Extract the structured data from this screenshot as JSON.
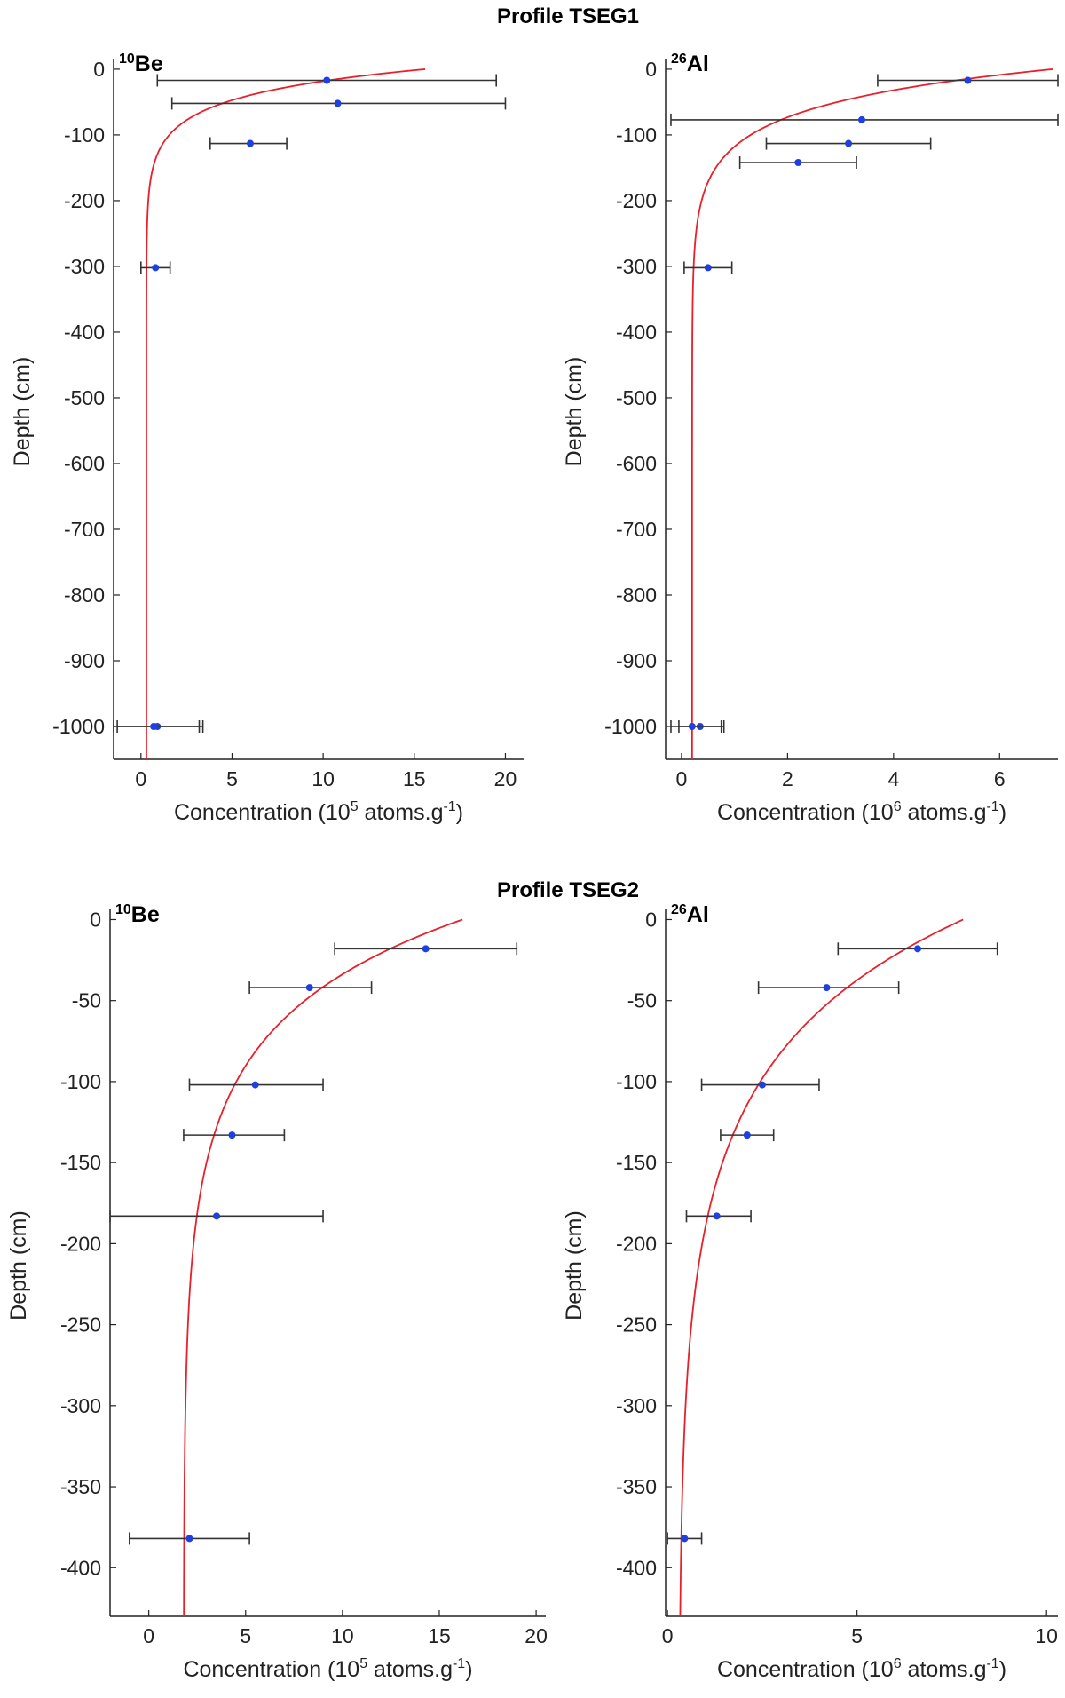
{
  "sections": [
    {
      "title": "Profile TSEG1"
    },
    {
      "title": "Profile TSEG2"
    }
  ],
  "chart_data": [
    {
      "type": "scatter",
      "panel": "TSEG1-Be",
      "isotope_mass": "10",
      "isotope_symbol": "Be",
      "xlabel_main": "Concentration (10",
      "xlabel_exp": "5",
      "xlabel_unit": " atoms.g",
      "xlabel_unit_exp": "-1",
      "xlabel_close": ")",
      "ylabel": "Depth (cm)",
      "xlim": [
        -1.5,
        21
      ],
      "ylim": [
        -1050,
        8
      ],
      "xticks": [
        0,
        5,
        10,
        15,
        20
      ],
      "yticks": [
        0,
        -100,
        -200,
        -300,
        -400,
        -500,
        -600,
        -700,
        -800,
        -900,
        -1000
      ],
      "points": [
        {
          "x": 10.2,
          "y": -17,
          "xerr_low": 0.9,
          "xerr_high": 19.5
        },
        {
          "x": 10.8,
          "y": -52,
          "xerr_low": 1.7,
          "xerr_high": 20.0
        },
        {
          "x": 6.0,
          "y": -113,
          "xerr_low": 3.8,
          "xerr_high": 8.0
        },
        {
          "x": 0.8,
          "y": -302,
          "xerr_low": 0.0,
          "xerr_high": 1.6
        },
        {
          "x": 0.9,
          "y": -1000,
          "xerr_low": -1.3,
          "xerr_high": 3.2
        },
        {
          "x": 0.7,
          "y": -1000,
          "xerr_low": -1.5,
          "xerr_high": 3.4
        }
      ],
      "fit": {
        "color": "#e8202a",
        "asymptote": 0.3,
        "surface_value": 15.6,
        "depth_scale_cm": 40
      }
    },
    {
      "type": "scatter",
      "panel": "TSEG1-Al",
      "isotope_mass": "26",
      "isotope_symbol": "Al",
      "xlabel_main": "Concentration (10",
      "xlabel_exp": "6",
      "xlabel_unit": " atoms.g",
      "xlabel_unit_exp": "-1",
      "xlabel_close": ")",
      "ylabel": "Depth (cm)",
      "xlim": [
        -0.3,
        7.1
      ],
      "ylim": [
        -1050,
        8
      ],
      "xticks": [
        0,
        2,
        4,
        6
      ],
      "yticks": [
        0,
        -100,
        -200,
        -300,
        -400,
        -500,
        -600,
        -700,
        -800,
        -900,
        -1000
      ],
      "points": [
        {
          "x": 5.4,
          "y": -17,
          "xerr_low": 3.7,
          "xerr_high": 7.1
        },
        {
          "x": 3.4,
          "y": -77,
          "xerr_low": -0.2,
          "xerr_high": 7.1
        },
        {
          "x": 3.15,
          "y": -113,
          "xerr_low": 1.6,
          "xerr_high": 4.7
        },
        {
          "x": 2.2,
          "y": -142,
          "xerr_low": 1.1,
          "xerr_high": 3.3
        },
        {
          "x": 0.5,
          "y": -302,
          "xerr_low": 0.05,
          "xerr_high": 0.95
        },
        {
          "x": 0.35,
          "y": -1000,
          "xerr_low": -0.05,
          "xerr_high": 0.8
        },
        {
          "x": 0.2,
          "y": -1000,
          "xerr_low": -0.2,
          "xerr_high": 0.75
        }
      ],
      "fit": {
        "color": "#e8202a",
        "asymptote": 0.2,
        "surface_value": 7.0,
        "depth_scale_cm": 55
      }
    },
    {
      "type": "scatter",
      "panel": "TSEG2-Be",
      "isotope_mass": "10",
      "isotope_symbol": "Be",
      "xlabel_main": "Concentration (10",
      "xlabel_exp": "5",
      "xlabel_unit": " atoms.g",
      "xlabel_unit_exp": "-1",
      "xlabel_close": ")",
      "ylabel": "Depth (cm)",
      "xlim": [
        -2,
        20.5
      ],
      "ylim": [
        -430,
        3
      ],
      "xticks": [
        0,
        5,
        10,
        15,
        20
      ],
      "yticks": [
        0,
        -50,
        -100,
        -150,
        -200,
        -250,
        -300,
        -350,
        -400
      ],
      "points": [
        {
          "x": 14.3,
          "y": -18,
          "xerr_low": 9.6,
          "xerr_high": 19.0
        },
        {
          "x": 8.3,
          "y": -42,
          "xerr_low": 5.2,
          "xerr_high": 11.5
        },
        {
          "x": 5.5,
          "y": -102,
          "xerr_low": 2.1,
          "xerr_high": 9.0
        },
        {
          "x": 4.3,
          "y": -133,
          "xerr_low": 1.8,
          "xerr_high": 7.0
        },
        {
          "x": 3.5,
          "y": -183,
          "xerr_low": -2.0,
          "xerr_high": 9.0
        },
        {
          "x": 2.1,
          "y": -382,
          "xerr_low": -1.0,
          "xerr_high": 5.2
        }
      ],
      "fit": {
        "color": "#e8202a",
        "asymptote": 1.8,
        "surface_value": 16.2,
        "depth_scale_cm": 60
      }
    },
    {
      "type": "scatter",
      "panel": "TSEG2-Al",
      "isotope_mass": "26",
      "isotope_symbol": "Al",
      "xlabel_main": "Concentration (10",
      "xlabel_exp": "6",
      "xlabel_unit": " atoms.g",
      "xlabel_unit_exp": "-1",
      "xlabel_close": ")",
      "ylabel": "Depth (cm)",
      "xlim": [
        -0.05,
        10.3
      ],
      "ylim": [
        -430,
        3
      ],
      "xticks": [
        0,
        5,
        10
      ],
      "yticks": [
        0,
        -50,
        -100,
        -150,
        -200,
        -250,
        -300,
        -350,
        -400
      ],
      "points": [
        {
          "x": 6.6,
          "y": -18,
          "xerr_low": 4.5,
          "xerr_high": 8.7
        },
        {
          "x": 4.2,
          "y": -42,
          "xerr_low": 2.4,
          "xerr_high": 6.1
        },
        {
          "x": 2.5,
          "y": -102,
          "xerr_low": 0.9,
          "xerr_high": 4.0
        },
        {
          "x": 2.1,
          "y": -133,
          "xerr_low": 1.4,
          "xerr_high": 2.8
        },
        {
          "x": 1.3,
          "y": -183,
          "xerr_low": 0.5,
          "xerr_high": 2.2
        },
        {
          "x": 0.45,
          "y": -382,
          "xerr_low": 0.0,
          "xerr_high": 0.9
        }
      ],
      "fit": {
        "color": "#e8202a",
        "asymptote": 0.3,
        "surface_value": 7.8,
        "depth_scale_cm": 80
      }
    }
  ]
}
